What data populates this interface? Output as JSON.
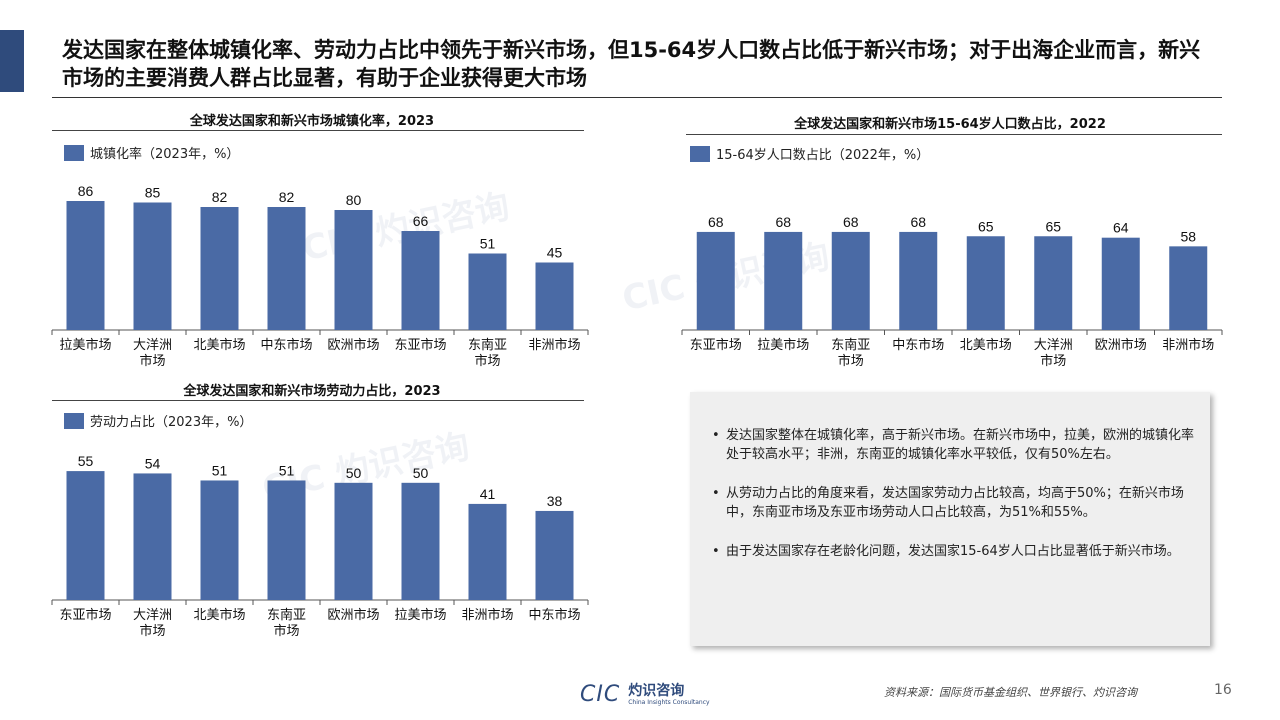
{
  "slide": {
    "title": "发达国家在整体城镇化率、劳动力占比中领先于新兴市场，但15-64岁人口数占比低于新兴市场；对于出海企业而言，新兴市场的主要消费人群占比显著，有助于企业获得更大市场",
    "source": "资料来源：国际货币基金组织、世界银行、灼识咨询",
    "page_number": "16",
    "logo": {
      "abbr": "CIC",
      "name_cn": "灼识咨询",
      "name_en": "China Insights Consultancy"
    },
    "colors": {
      "bar": "#4a6aa5",
      "accent": "#2f4b7c"
    }
  },
  "bullets": [
    "发达国家整体在城镇化率，高于新兴市场。在新兴市场中，拉美，欧洲的城镇化率处于较高水平；非洲，东南亚的城镇化率水平较低，仅有50%左右。",
    "从劳动力占比的角度来看，发达国家劳动力占比较高，均高于50%；在新兴市场中，东南亚市场及东亚市场劳动人口占比较高，为51%和55%。",
    "由于发达国家存在老龄化问题，发达国家15-64岁人口占比显著低于新兴市场。"
  ],
  "chart_data": [
    {
      "type": "bar",
      "title": "全球发达国家和新兴市场城镇化率，2023",
      "legend": "城镇化率（2023年，%）",
      "categories": [
        "拉美市场",
        "大洋洲市场",
        "北美市场",
        "中东市场",
        "欧洲市场",
        "东亚市场",
        "东南亚市场",
        "非洲市场"
      ],
      "category_lines": [
        [
          "拉美市场"
        ],
        [
          "大洋洲",
          "市场"
        ],
        [
          "北美市场"
        ],
        [
          "中东市场"
        ],
        [
          "欧洲市场"
        ],
        [
          "东亚市场"
        ],
        [
          "东南亚",
          "市场"
        ],
        [
          "非洲市场"
        ]
      ],
      "values": [
        86,
        85,
        82,
        82,
        80,
        66,
        51,
        45
      ],
      "ylim": [
        0,
        100
      ]
    },
    {
      "type": "bar",
      "title": "全球发达国家和新兴市场劳动力占比，2023",
      "legend": "劳动力占比（2023年，%）",
      "categories": [
        "东亚市场",
        "大洋洲市场",
        "北美市场",
        "东南亚市场",
        "欧洲市场",
        "拉美市场",
        "非洲市场",
        "中东市场"
      ],
      "category_lines": [
        [
          "东亚市场"
        ],
        [
          "大洋洲",
          "市场"
        ],
        [
          "北美市场"
        ],
        [
          "东南亚",
          "市场"
        ],
        [
          "欧洲市场"
        ],
        [
          "拉美市场"
        ],
        [
          "非洲市场"
        ],
        [
          "中东市场"
        ]
      ],
      "values": [
        55,
        54,
        51,
        51,
        50,
        50,
        41,
        38
      ],
      "ylim": [
        0,
        64
      ]
    },
    {
      "type": "bar",
      "title": "全球发达国家和新兴市场15-64岁人口数占比，2022",
      "legend": "15-64岁人口数占比（2022年，%）",
      "categories": [
        "东亚市场",
        "拉美市场",
        "东南亚市场",
        "中东市场",
        "北美市场",
        "大洋洲市场",
        "欧洲市场",
        "非洲市场"
      ],
      "category_lines": [
        [
          "东亚市场"
        ],
        [
          "拉美市场"
        ],
        [
          "东南亚",
          "市场"
        ],
        [
          "中东市场"
        ],
        [
          "北美市场"
        ],
        [
          "大洋洲",
          "市场"
        ],
        [
          "欧洲市场"
        ],
        [
          "非洲市场"
        ]
      ],
      "values": [
        68,
        68,
        68,
        68,
        65,
        65,
        64,
        58
      ],
      "ylim": [
        0,
        104
      ]
    }
  ]
}
